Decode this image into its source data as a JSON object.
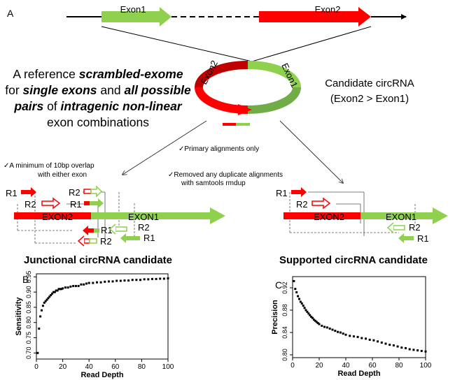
{
  "panel_a": {
    "label": "A",
    "exon1_label": "Exon1",
    "exon2_label": "Exon2",
    "ring_exon1_label": "Exon1",
    "ring_exon2_label": "Exon2",
    "desc_line1_plain": "A reference ",
    "desc_line1_em": "scrambled-exome",
    "desc_line2_plain1": "for ",
    "desc_line2_em1": "single exons",
    "desc_line2_plain2": " and ",
    "desc_line2_em2": "all possible",
    "desc_line3_em1": "pairs",
    "desc_line3_plain1": " of ",
    "desc_line3_em2": "intragenic non-linear",
    "desc_line4_plain": "exon combinations",
    "candidate_line1": "Candidate circRNA",
    "candidate_line2": "(Exon2 > Exon1)",
    "note_primary": "✓Primary alignments only",
    "note_overlap_1": "✓A minimum of 10bp overlap",
    "note_overlap_2": "with either exon",
    "note_dedup_1": "✓Removed any duplicate alignments",
    "note_dedup_2": "with samtools rmdup",
    "left_title": "Junctional circRNA candidate",
    "right_title": "Supported circRNA  candidate",
    "exon1_caps": "EXON1",
    "exon2_caps": "EXON2",
    "read_r1": "R1",
    "read_r2": "R2"
  },
  "colors": {
    "exon1": "#8fd14f",
    "exon2": "#ff0000",
    "dark_red": "#c00000",
    "dark_green": "#70ad47"
  },
  "chart_data": [
    {
      "panel": "B",
      "type": "scatter",
      "title": "",
      "xlabel": "Read Depth",
      "ylabel": "Sensitivity",
      "xlim": [
        0,
        100
      ],
      "ylim": [
        0.68,
        0.96
      ],
      "xticks": [
        0,
        20,
        40,
        60,
        80,
        100
      ],
      "yticks": [
        0.7,
        0.75,
        0.8,
        0.85,
        0.9,
        0.95
      ],
      "x": [
        1,
        2,
        3,
        4,
        5,
        6,
        7,
        8,
        9,
        10,
        11,
        12,
        13,
        14,
        15,
        16,
        17,
        18,
        19,
        20,
        22,
        24,
        26,
        28,
        30,
        32,
        34,
        36,
        38,
        40,
        43,
        46,
        49,
        52,
        55,
        58,
        61,
        64,
        67,
        70,
        73,
        76,
        79,
        82,
        85,
        88,
        91,
        94,
        97,
        100
      ],
      "y": [
        0.7,
        0.78,
        0.82,
        0.84,
        0.855,
        0.865,
        0.87,
        0.875,
        0.88,
        0.885,
        0.89,
        0.895,
        0.9,
        0.9,
        0.905,
        0.905,
        0.91,
        0.91,
        0.91,
        0.912,
        0.915,
        0.915,
        0.918,
        0.92,
        0.92,
        0.92,
        0.925,
        0.925,
        0.928,
        0.93,
        0.93,
        0.932,
        0.932,
        0.934,
        0.935,
        0.935,
        0.937,
        0.937,
        0.938,
        0.938,
        0.94,
        0.94,
        0.94,
        0.942,
        0.942,
        0.943,
        0.943,
        0.944,
        0.944,
        0.945
      ]
    },
    {
      "panel": "C",
      "type": "scatter",
      "title": "",
      "xlabel": "Read Depth",
      "ylabel": "Precision",
      "xlim": [
        0,
        100
      ],
      "ylim": [
        0.795,
        0.94
      ],
      "xticks": [
        0,
        20,
        40,
        60,
        80,
        100
      ],
      "yticks": [
        0.8,
        0.84,
        0.88,
        0.92
      ],
      "x": [
        1,
        2,
        3,
        4,
        5,
        6,
        7,
        8,
        9,
        10,
        11,
        12,
        13,
        14,
        15,
        16,
        17,
        18,
        19,
        20,
        22,
        24,
        26,
        28,
        30,
        32,
        34,
        36,
        38,
        40,
        43,
        46,
        49,
        52,
        55,
        58,
        61,
        64,
        67,
        70,
        73,
        76,
        79,
        82,
        85,
        88,
        91,
        94,
        97,
        100
      ],
      "y": [
        0.932,
        0.918,
        0.912,
        0.905,
        0.9,
        0.895,
        0.892,
        0.888,
        0.884,
        0.88,
        0.877,
        0.874,
        0.871,
        0.868,
        0.866,
        0.863,
        0.861,
        0.859,
        0.857,
        0.855,
        0.852,
        0.85,
        0.849,
        0.847,
        0.845,
        0.843,
        0.841,
        0.84,
        0.838,
        0.836,
        0.834,
        0.833,
        0.832,
        0.83,
        0.829,
        0.827,
        0.826,
        0.824,
        0.822,
        0.82,
        0.818,
        0.817,
        0.815,
        0.813,
        0.812,
        0.81,
        0.809,
        0.808,
        0.807,
        0.806
      ]
    }
  ]
}
